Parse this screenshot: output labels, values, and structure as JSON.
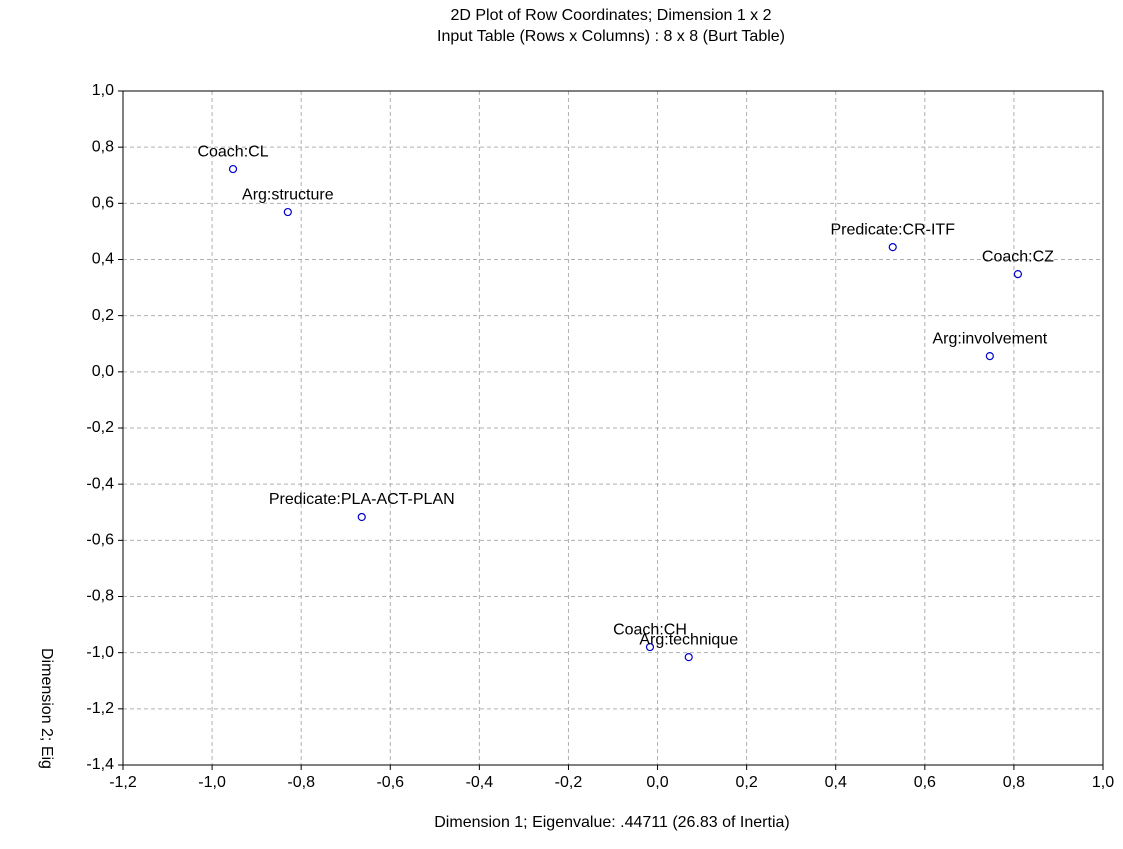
{
  "chart_data": {
    "type": "scatter",
    "title": "2D Plot of Row Coordinates; Dimension 1 x 2",
    "subtitle": "Input Table (Rows x Columns) : 8 x 8 (Burt Table)",
    "x_label": "Dimension 1; Eigenvalue: .44711 (26.83  of Inertia)",
    "y_label": "Dimension 2; Eig",
    "labels": [
      "Coach:CL",
      "Arg:structure",
      "Predicate:CR-ITF",
      "Coach:CZ",
      "Arg:involvement",
      "Predicate:PLA-ACT-PLAN",
      "Coach:CH",
      "Arg:technique"
    ],
    "x": [
      -0.953,
      -0.83,
      0.528,
      0.809,
      0.746,
      -0.664,
      -0.017,
      0.07
    ],
    "values": [
      0.722,
      0.569,
      0.444,
      0.348,
      0.056,
      -0.517,
      -0.98,
      -1.016
    ],
    "color": "#0000cc",
    "xlim": [
      -1.2,
      1.0
    ],
    "xticks": [
      {
        "value": -1.2,
        "label": "-1,2"
      },
      {
        "value": -1.0,
        "label": "-1,0"
      },
      {
        "value": -0.8,
        "label": "-0,8"
      },
      {
        "value": -0.6,
        "label": "-0,6"
      },
      {
        "value": -0.4,
        "label": "-0,4"
      },
      {
        "value": -0.2,
        "label": "-0,2"
      },
      {
        "value": 0,
        "label": "0,0"
      },
      {
        "value": 0.2,
        "label": "0,2"
      },
      {
        "value": 0.4,
        "label": "0,4"
      },
      {
        "value": 0.6,
        "label": "0,6"
      },
      {
        "value": 0.8,
        "label": "0,8"
      },
      {
        "value": 1.0,
        "label": "1,0"
      }
    ],
    "ylim": [
      -1.4,
      1.0
    ],
    "yticks": [
      {
        "value": -1.4,
        "label": "-1,4"
      },
      {
        "value": -1.2,
        "label": "-1,2"
      },
      {
        "value": -1.0,
        "label": "-1,0"
      },
      {
        "value": -0.8,
        "label": "-0,8"
      },
      {
        "value": -0.6,
        "label": "-0,6"
      },
      {
        "value": -0.4,
        "label": "-0,4"
      },
      {
        "value": -0.2,
        "label": "-0,2"
      },
      {
        "value": 0,
        "label": "0,0"
      },
      {
        "value": 0.2,
        "label": "0,2"
      },
      {
        "value": 0.4,
        "label": "0,4"
      },
      {
        "value": 0.6,
        "label": "0,6"
      },
      {
        "value": 0.8,
        "label": "0,8"
      },
      {
        "value": 1.0,
        "label": "1,0"
      }
    ],
    "grid": true
  }
}
